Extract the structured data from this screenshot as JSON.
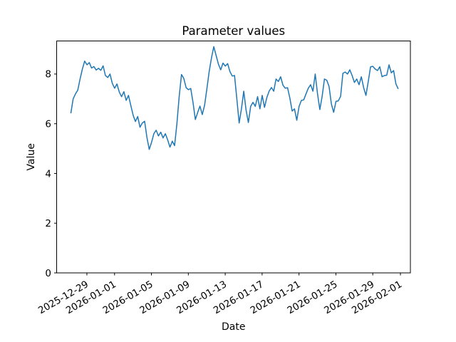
{
  "chart_data": {
    "type": "line",
    "title": "Parameter values",
    "xlabel": "Date",
    "ylabel": "Value",
    "line_color": "#1f77b4",
    "grid": false,
    "legend": "none",
    "x_day_zero_label": "2025-12-29",
    "x_start_day": -1.74,
    "x_interval_days": 0.25,
    "xlim_days": [
      -3.28,
      35.08
    ],
    "ylim": [
      0,
      9.33
    ],
    "y_ticks": [
      {
        "label": "0",
        "value": 0
      },
      {
        "label": "2",
        "value": 2
      },
      {
        "label": "4",
        "value": 4
      },
      {
        "label": "6",
        "value": 6
      },
      {
        "label": "8",
        "value": 8
      }
    ],
    "x_ticks": [
      {
        "label": "2025-12-29",
        "day": 0
      },
      {
        "label": "2026-01-01",
        "day": 3
      },
      {
        "label": "2026-01-05",
        "day": 7
      },
      {
        "label": "2026-01-09",
        "day": 11
      },
      {
        "label": "2026-01-13",
        "day": 15
      },
      {
        "label": "2026-01-17",
        "day": 19
      },
      {
        "label": "2026-01-21",
        "day": 23
      },
      {
        "label": "2026-01-25",
        "day": 27
      },
      {
        "label": "2026-01-29",
        "day": 31
      },
      {
        "label": "2026-02-01",
        "day": 34
      }
    ],
    "values": [
      6.42,
      7.0,
      7.2,
      7.35,
      7.8,
      8.2,
      8.52,
      8.37,
      8.46,
      8.24,
      8.3,
      8.16,
      8.23,
      8.15,
      8.33,
      7.94,
      7.86,
      8.0,
      7.62,
      7.43,
      7.6,
      7.28,
      7.09,
      7.29,
      6.94,
      7.14,
      6.74,
      6.35,
      6.09,
      6.29,
      5.86,
      6.03,
      6.1,
      5.45,
      4.97,
      5.25,
      5.6,
      5.74,
      5.51,
      5.66,
      5.43,
      5.6,
      5.35,
      5.06,
      5.3,
      5.12,
      6.0,
      7.1,
      7.98,
      7.82,
      7.45,
      7.37,
      7.42,
      6.85,
      6.17,
      6.45,
      6.71,
      6.37,
      6.74,
      7.4,
      8.1,
      8.65,
      9.1,
      8.75,
      8.4,
      8.17,
      8.44,
      8.32,
      8.42,
      8.1,
      7.92,
      7.94,
      7.0,
      6.03,
      6.6,
      7.31,
      6.55,
      6.05,
      6.7,
      6.86,
      6.7,
      7.09,
      6.6,
      7.14,
      6.66,
      7.05,
      7.31,
      7.46,
      7.31,
      7.8,
      7.7,
      7.89,
      7.55,
      7.43,
      7.45,
      7.03,
      6.51,
      6.6,
      6.14,
      6.7,
      6.94,
      6.96,
      7.2,
      7.43,
      7.57,
      7.31,
      8.0,
      7.2,
      6.57,
      7.1,
      7.8,
      7.75,
      7.5,
      6.8,
      6.46,
      6.9,
      6.92,
      7.1,
      8.03,
      8.08,
      8.0,
      8.17,
      7.94,
      7.66,
      7.8,
      7.57,
      7.89,
      7.45,
      7.14,
      7.7,
      8.29,
      8.31,
      8.2,
      8.14,
      8.29,
      7.89,
      7.94,
      7.95,
      8.37,
      8.05,
      8.14,
      7.6,
      7.4
    ]
  }
}
